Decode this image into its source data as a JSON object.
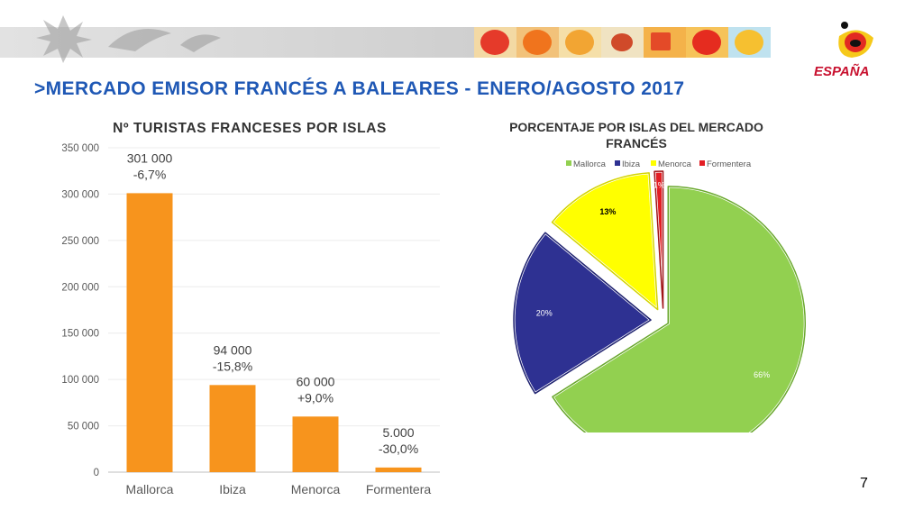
{
  "headline": ">MERCADO EMISOR FRANCÉS A BALEARES - ENERO/AGOSTO 2017",
  "page_number": "7",
  "logo_text": "ESPAÑA",
  "colors": {
    "headline": "#1f58b5",
    "bars": "#f7941d",
    "mallorca": "#92d050",
    "ibiza": "#2e3192",
    "menorca": "#ffff00",
    "formentera": "#e31e24"
  },
  "chart_data": [
    {
      "type": "bar",
      "title": "Nº TURISTAS FRANCESES POR ISLAS",
      "categories": [
        "Mallorca",
        "Ibiza",
        "Menorca",
        "Formentera"
      ],
      "values": [
        301000,
        94000,
        60000,
        5000
      ],
      "value_labels": [
        "301 000",
        "94 000",
        "60 000",
        "5.000"
      ],
      "change_labels": [
        "-6,7%",
        "-15,8%",
        "+9,0%",
        "-30,0%"
      ],
      "yticks": [
        "0",
        "50 000",
        "100 000",
        "150 000",
        "200 000",
        "250 000",
        "300 000",
        "350 000"
      ],
      "ylim": [
        0,
        350000
      ],
      "grid": true
    },
    {
      "type": "pie",
      "title": "PORCENTAJE POR ISLAS DEL MERCADO FRANCÉS",
      "labels": [
        "Mallorca",
        "Ibiza",
        "Menorca",
        "Formentera"
      ],
      "values": [
        66,
        20,
        13,
        1
      ],
      "data_labels": [
        "66%",
        "20%",
        "13%",
        "1%"
      ],
      "legend": "top",
      "exploded": true
    }
  ]
}
